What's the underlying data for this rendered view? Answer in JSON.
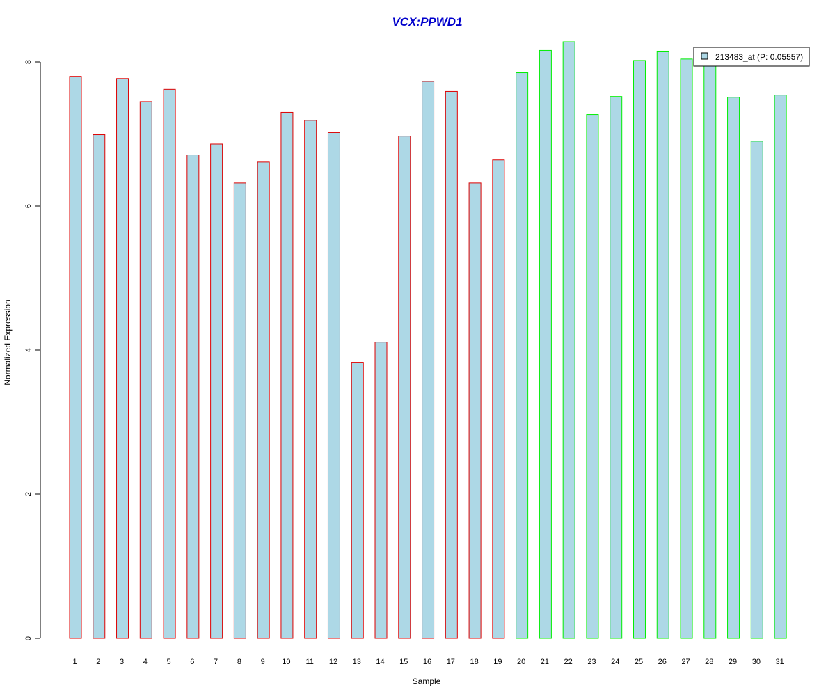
{
  "chart_data": {
    "type": "bar",
    "title": "VCX:PPWD1",
    "xlabel": "Sample",
    "ylabel": "Normalized Expression",
    "categories": [
      "1",
      "2",
      "3",
      "4",
      "5",
      "6",
      "7",
      "8",
      "9",
      "10",
      "11",
      "12",
      "13",
      "14",
      "15",
      "16",
      "17",
      "18",
      "19",
      "20",
      "21",
      "22",
      "23",
      "24",
      "25",
      "26",
      "27",
      "28",
      "29",
      "30",
      "31"
    ],
    "series": [
      {
        "name": "213483_at (P: 0.05557)",
        "values": [
          7.8,
          6.99,
          7.77,
          7.45,
          7.62,
          6.71,
          6.86,
          6.32,
          6.61,
          7.3,
          7.19,
          7.02,
          3.83,
          4.11,
          6.97,
          7.73,
          7.59,
          6.32,
          6.64,
          7.85,
          8.16,
          8.28,
          7.27,
          7.52,
          8.02,
          8.15,
          8.04,
          8.0,
          7.51,
          6.9,
          7.54
        ]
      }
    ],
    "groups": [
      {
        "start": 1,
        "end": 19,
        "border_color": "#dd0000"
      },
      {
        "start": 20,
        "end": 31,
        "border_color": "#00ee00"
      }
    ],
    "yticks": [
      "0",
      "2",
      "4",
      "6",
      "8"
    ],
    "ylim": [
      0,
      8.3
    ],
    "legend_position": "top-right",
    "grid": false,
    "colors": {
      "bar_fill": "#add8e6",
      "title": "#0000cc"
    }
  }
}
